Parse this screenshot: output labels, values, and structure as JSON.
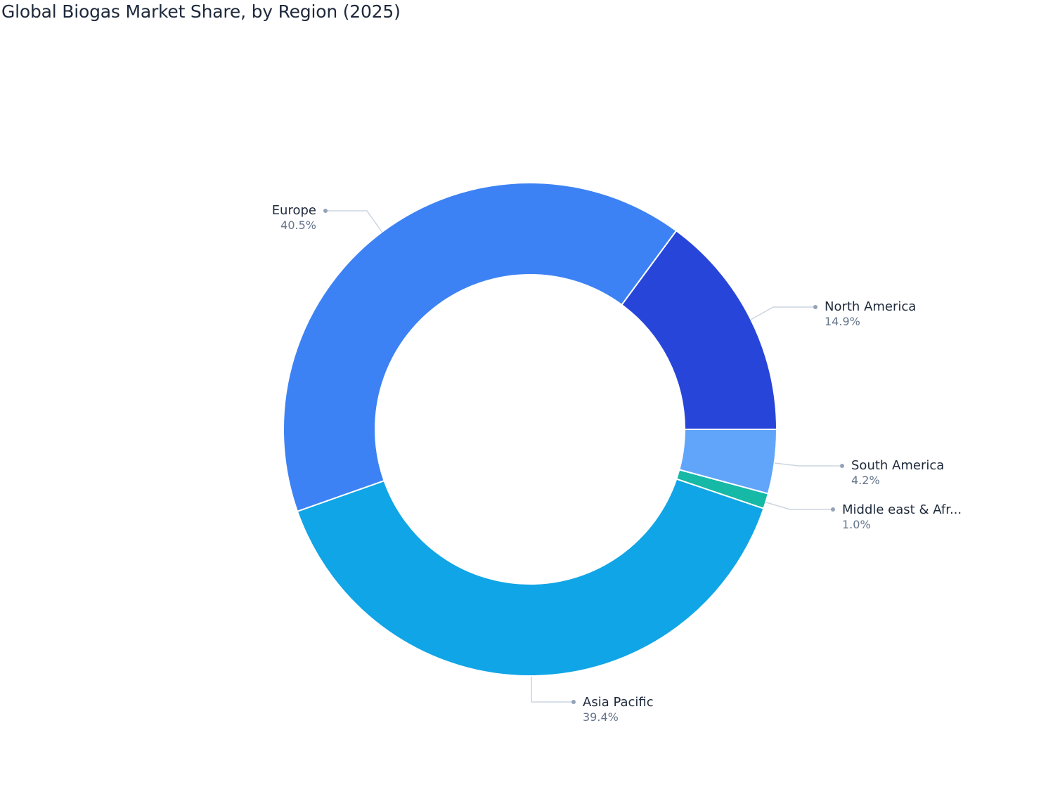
{
  "title": "Global Biogas Market Share, by Region (2025)",
  "chart_data": {
    "type": "pie",
    "subtype": "donut",
    "title": "Global Biogas Market Share, by Region (2025)",
    "categories": [
      "North America",
      "Europe",
      "Asia Pacific",
      "Middle east & Africa",
      "South America"
    ],
    "values": [
      14.9,
      40.5,
      39.4,
      1.0,
      4.2
    ],
    "unit": "%",
    "colors": [
      "#2845d9",
      "#3d82f4",
      "#10a5e6",
      "#16b8a6",
      "#60a5fa"
    ],
    "legend": "none (outside callout labels)",
    "labels": [
      {
        "name": "North America",
        "value": "14.9%"
      },
      {
        "name": "Europe",
        "value": "40.5%"
      },
      {
        "name": "Asia Pacific",
        "value": "39.4%"
      },
      {
        "name": "Middle east & Afr...",
        "value": "1.0%"
      },
      {
        "name": "South America",
        "value": "4.2%"
      }
    ]
  },
  "labels": {
    "north_america": {
      "name": "North America",
      "pct": "14.9%"
    },
    "europe": {
      "name": "Europe",
      "pct": "40.5%"
    },
    "asia_pacific": {
      "name": "Asia Pacific",
      "pct": "39.4%"
    },
    "middle_east": {
      "name": "Middle east & Afr...",
      "pct": "1.0%"
    },
    "south_america": {
      "name": "South America",
      "pct": "4.2%"
    }
  }
}
